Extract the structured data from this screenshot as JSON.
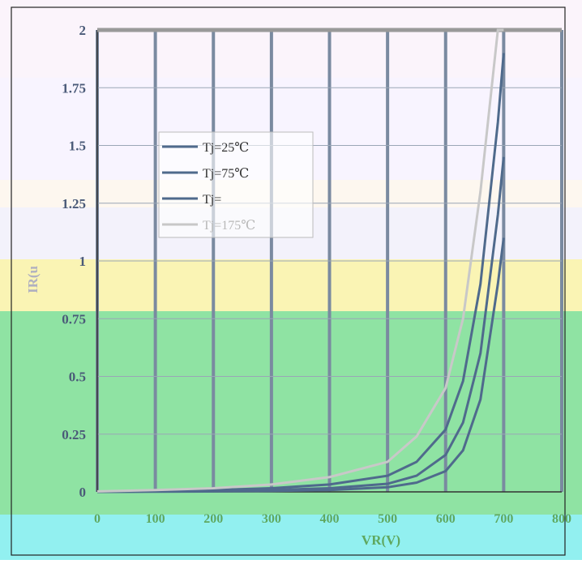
{
  "chart_data": {
    "type": "line",
    "title": "",
    "xlabel": "VR(V)",
    "ylabel": "IR(u",
    "xlim": [
      0,
      800
    ],
    "ylim": [
      0,
      2
    ],
    "x_ticks": [
      "0",
      "100",
      "200",
      "300",
      "400",
      "500",
      "600",
      "700",
      "800"
    ],
    "y_ticks": [
      "0",
      "0.25",
      "0.5",
      "0.75",
      "1",
      "1.25",
      "1.5",
      "1.75",
      "2"
    ],
    "grid": true,
    "legend_position": "upper-left",
    "series": [
      {
        "name": "Tj=25℃",
        "color": "#4f6a8c",
        "x": [
          0,
          100,
          200,
          300,
          400,
          500,
          550,
          600,
          630,
          660,
          690,
          700
        ],
        "y": [
          0.0,
          0.001,
          0.002,
          0.004,
          0.008,
          0.02,
          0.04,
          0.09,
          0.18,
          0.4,
          0.9,
          1.1
        ]
      },
      {
        "name": "Tj=75℃",
        "color": "#4f6a8c",
        "x": [
          0,
          100,
          200,
          300,
          400,
          500,
          550,
          600,
          630,
          660,
          690,
          700
        ],
        "y": [
          0.0,
          0.002,
          0.004,
          0.008,
          0.016,
          0.035,
          0.07,
          0.16,
          0.3,
          0.6,
          1.2,
          1.45
        ]
      },
      {
        "name": "Tj=",
        "color": "#4f6a8c",
        "x": [
          0,
          100,
          200,
          300,
          400,
          500,
          550,
          600,
          630,
          660,
          690,
          700
        ],
        "y": [
          0.001,
          0.004,
          0.008,
          0.016,
          0.032,
          0.07,
          0.13,
          0.27,
          0.48,
          0.9,
          1.6,
          1.9
        ]
      },
      {
        "name": "Tj=175℃",
        "color": "#c8c8c8",
        "x": [
          0,
          100,
          200,
          300,
          400,
          500,
          550,
          600,
          630,
          660,
          690,
          700
        ],
        "y": [
          0.002,
          0.008,
          0.016,
          0.032,
          0.064,
          0.13,
          0.24,
          0.45,
          0.75,
          1.3,
          2.0,
          2.0
        ]
      }
    ]
  }
}
